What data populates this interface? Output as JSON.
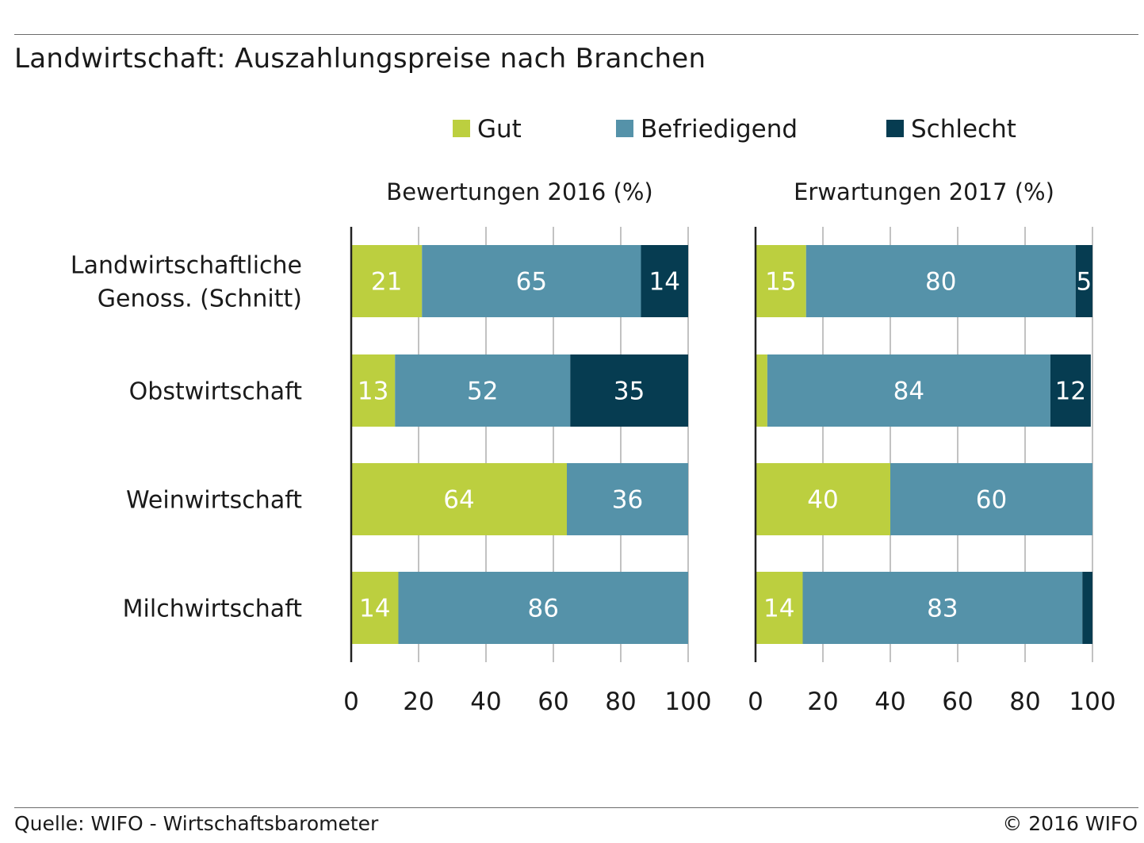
{
  "title": "Landwirtschaft: Auszahlungspreise nach Branchen",
  "source": "Quelle: WIFO - Wirtschaftsbarometer",
  "copyright": "© 2016 WIFO",
  "colors": {
    "Gut": "#bccf3f",
    "Befriedigend": "#5592a9",
    "Schlecht": "#063c51",
    "label_dark": "#ffffff",
    "axis": "#222222",
    "grid": "#9a9a9a"
  },
  "chart_data": {
    "type": "bar",
    "orientation": "horizontal",
    "stacked": true,
    "legend": {
      "entries": [
        "Gut",
        "Befriedigend",
        "Schlecht"
      ],
      "placement": "top"
    },
    "categories": [
      "Landwirtschaftliche Genoss. (Schnitt)",
      "Obstwirtschaft",
      "Weinwirtschaft",
      "Milchwirtschaft"
    ],
    "category_lines": [
      [
        "Landwirtschaftliche",
        "Genoss. (Schnitt)"
      ],
      [
        "Obstwirtschaft"
      ],
      [
        "Weinwirtschaft"
      ],
      [
        "Milchwirtschaft"
      ]
    ],
    "panels": [
      {
        "title": "Bewertungen 2016 (%)",
        "xlim": [
          0,
          100
        ],
        "xticks": [
          0,
          20,
          40,
          60,
          80,
          100
        ],
        "grid": true,
        "series": [
          {
            "name": "Gut",
            "values": [
              21,
              13,
              64,
              14
            ],
            "labels": [
              "21",
              "13",
              "64",
              "14"
            ]
          },
          {
            "name": "Befriedigend",
            "values": [
              65,
              52,
              36,
              86
            ],
            "labels": [
              "65",
              "52",
              "36",
              "86"
            ]
          },
          {
            "name": "Schlecht",
            "values": [
              14,
              35,
              0,
              0
            ],
            "labels": [
              "14",
              "35",
              "",
              ""
            ]
          }
        ]
      },
      {
        "title": "Erwartungen 2017 (%)",
        "xlim": [
          0,
          100
        ],
        "xticks": [
          0,
          20,
          40,
          60,
          80,
          100
        ],
        "grid": true,
        "series": [
          {
            "name": "Gut",
            "values": [
              15,
              3.5,
              40,
              14
            ],
            "labels": [
              "15",
              "",
              "40",
              "14"
            ]
          },
          {
            "name": "Befriedigend",
            "values": [
              80,
              84,
              60,
              83
            ],
            "labels": [
              "80",
              "84",
              "60",
              "83"
            ]
          },
          {
            "name": "Schlecht",
            "values": [
              5,
              12,
              0,
              3
            ],
            "labels": [
              "5",
              "12",
              "",
              ""
            ]
          }
        ]
      }
    ]
  }
}
